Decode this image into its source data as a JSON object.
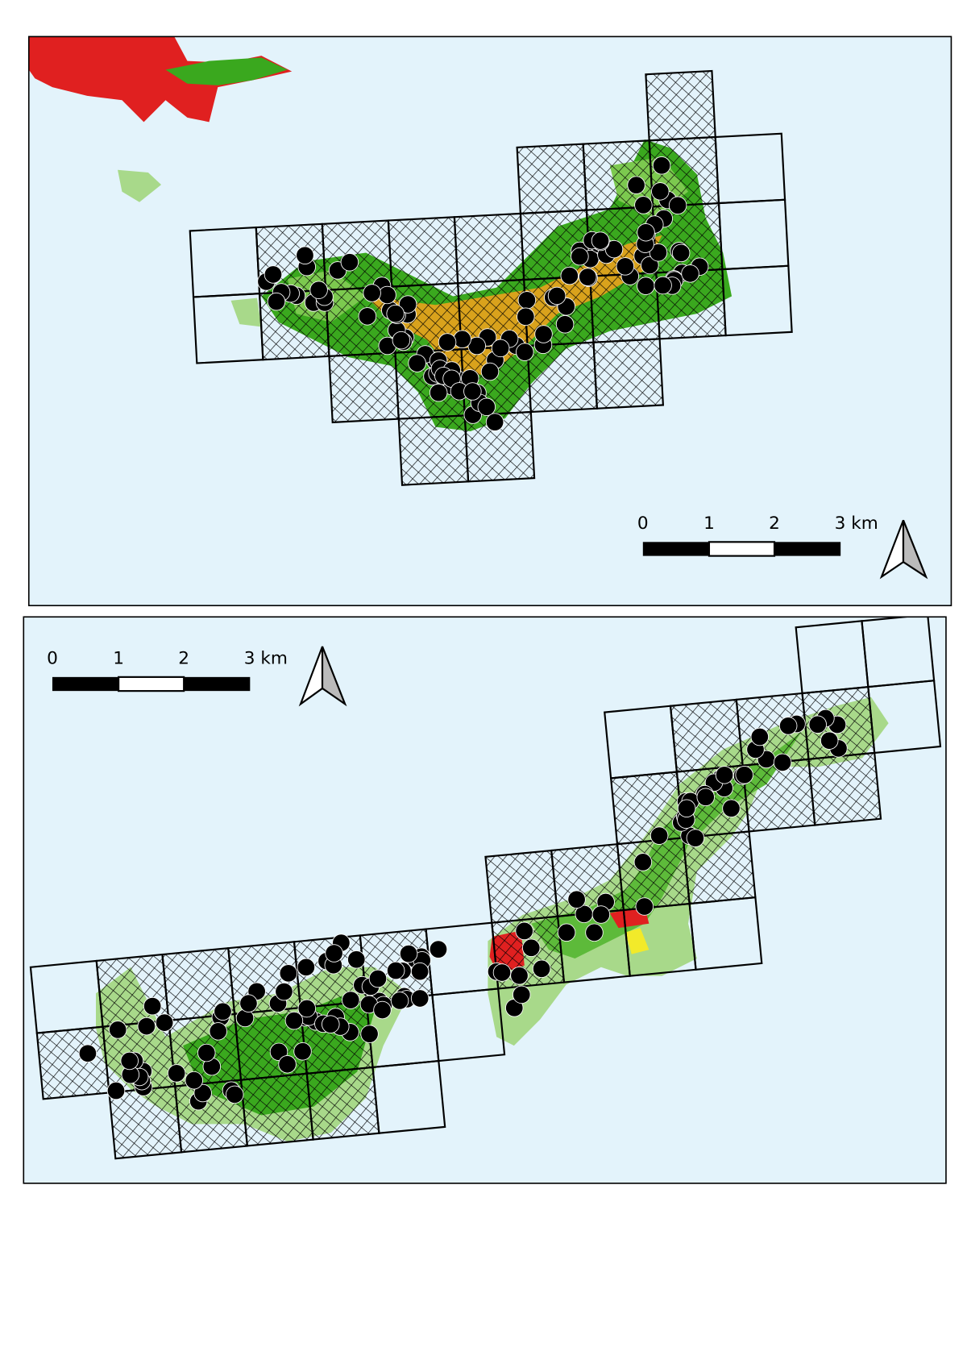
{
  "maps": [
    {
      "scale_bar": {
        "labels": [
          "0",
          "1",
          "2",
          "3 km"
        ]
      }
    },
    {
      "scale_bar": {
        "labels": [
          "0",
          "1",
          "2",
          "3 km"
        ]
      }
    }
  ]
}
